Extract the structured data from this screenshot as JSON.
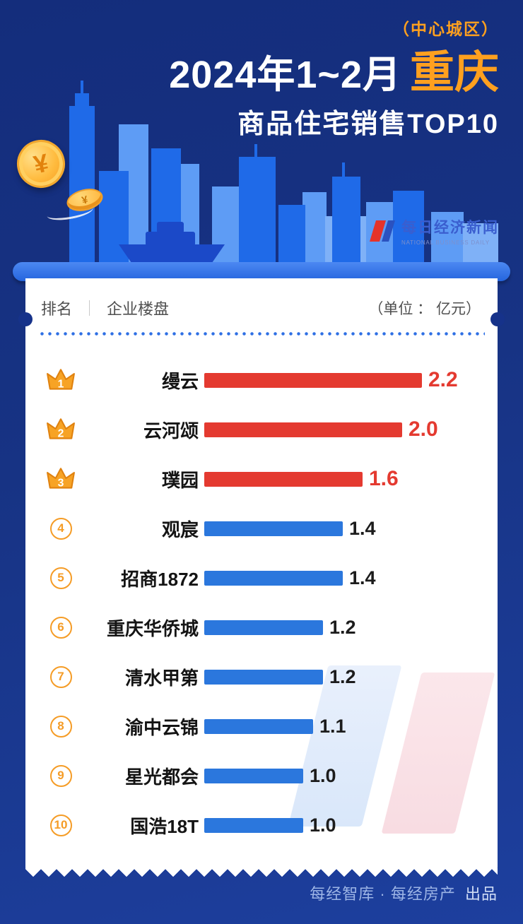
{
  "header": {
    "region_tag": "（中心城区）",
    "title_prefix": "2024年1~2月",
    "title_city": "重庆",
    "subtitle": "商品住宅销售TOP10",
    "logo_cn": "每日经济新闻",
    "logo_en": "NATIONAL BUSINESS DAILY"
  },
  "table": {
    "col_rank": "排名",
    "col_project": "企业楼盘",
    "unit_label": "（单位 ： 亿元）"
  },
  "chart_data": {
    "type": "bar",
    "orientation": "horizontal",
    "title": "2024年1~2月重庆商品住宅销售TOP10（中心城区）",
    "unit": "亿元",
    "xlim": [
      0,
      2.4
    ],
    "grid": false,
    "legend": false,
    "rows": [
      {
        "rank": 1,
        "name": "缦云",
        "value": 2.2,
        "label": "2.2",
        "tier": "top"
      },
      {
        "rank": 2,
        "name": "云河颂",
        "value": 2.0,
        "label": "2.0",
        "tier": "top"
      },
      {
        "rank": 3,
        "name": "璞园",
        "value": 1.6,
        "label": "1.6",
        "tier": "top"
      },
      {
        "rank": 4,
        "name": "观宸",
        "value": 1.4,
        "label": "1.4",
        "tier": "normal"
      },
      {
        "rank": 5,
        "name": "招商1872",
        "value": 1.4,
        "label": "1.4",
        "tier": "normal"
      },
      {
        "rank": 6,
        "name": "重庆华侨城",
        "value": 1.2,
        "label": "1.2",
        "tier": "normal"
      },
      {
        "rank": 7,
        "name": "清水甲第",
        "value": 1.2,
        "label": "1.2",
        "tier": "normal"
      },
      {
        "rank": 8,
        "name": "渝中云锦",
        "value": 1.1,
        "label": "1.1",
        "tier": "normal"
      },
      {
        "rank": 9,
        "name": "星光都会",
        "value": 1.0,
        "label": "1.0",
        "tier": "normal"
      },
      {
        "rank": 10,
        "name": "国浩18T",
        "value": 1.0,
        "label": "1.0",
        "tier": "normal"
      }
    ],
    "top3_color": "#E43A30",
    "other_color": "#2B77DD"
  },
  "decor": {
    "coin_symbol": "¥"
  },
  "footer": {
    "credit": "每经智库 · 每经房产",
    "suffix": "出品"
  },
  "colors": {
    "background": "#16328A",
    "accent_orange": "#FFA01F",
    "bar_red": "#E43A30",
    "bar_blue": "#2B77DD",
    "rank_orange": "#F59C26",
    "card_white": "#FFFFFF"
  }
}
